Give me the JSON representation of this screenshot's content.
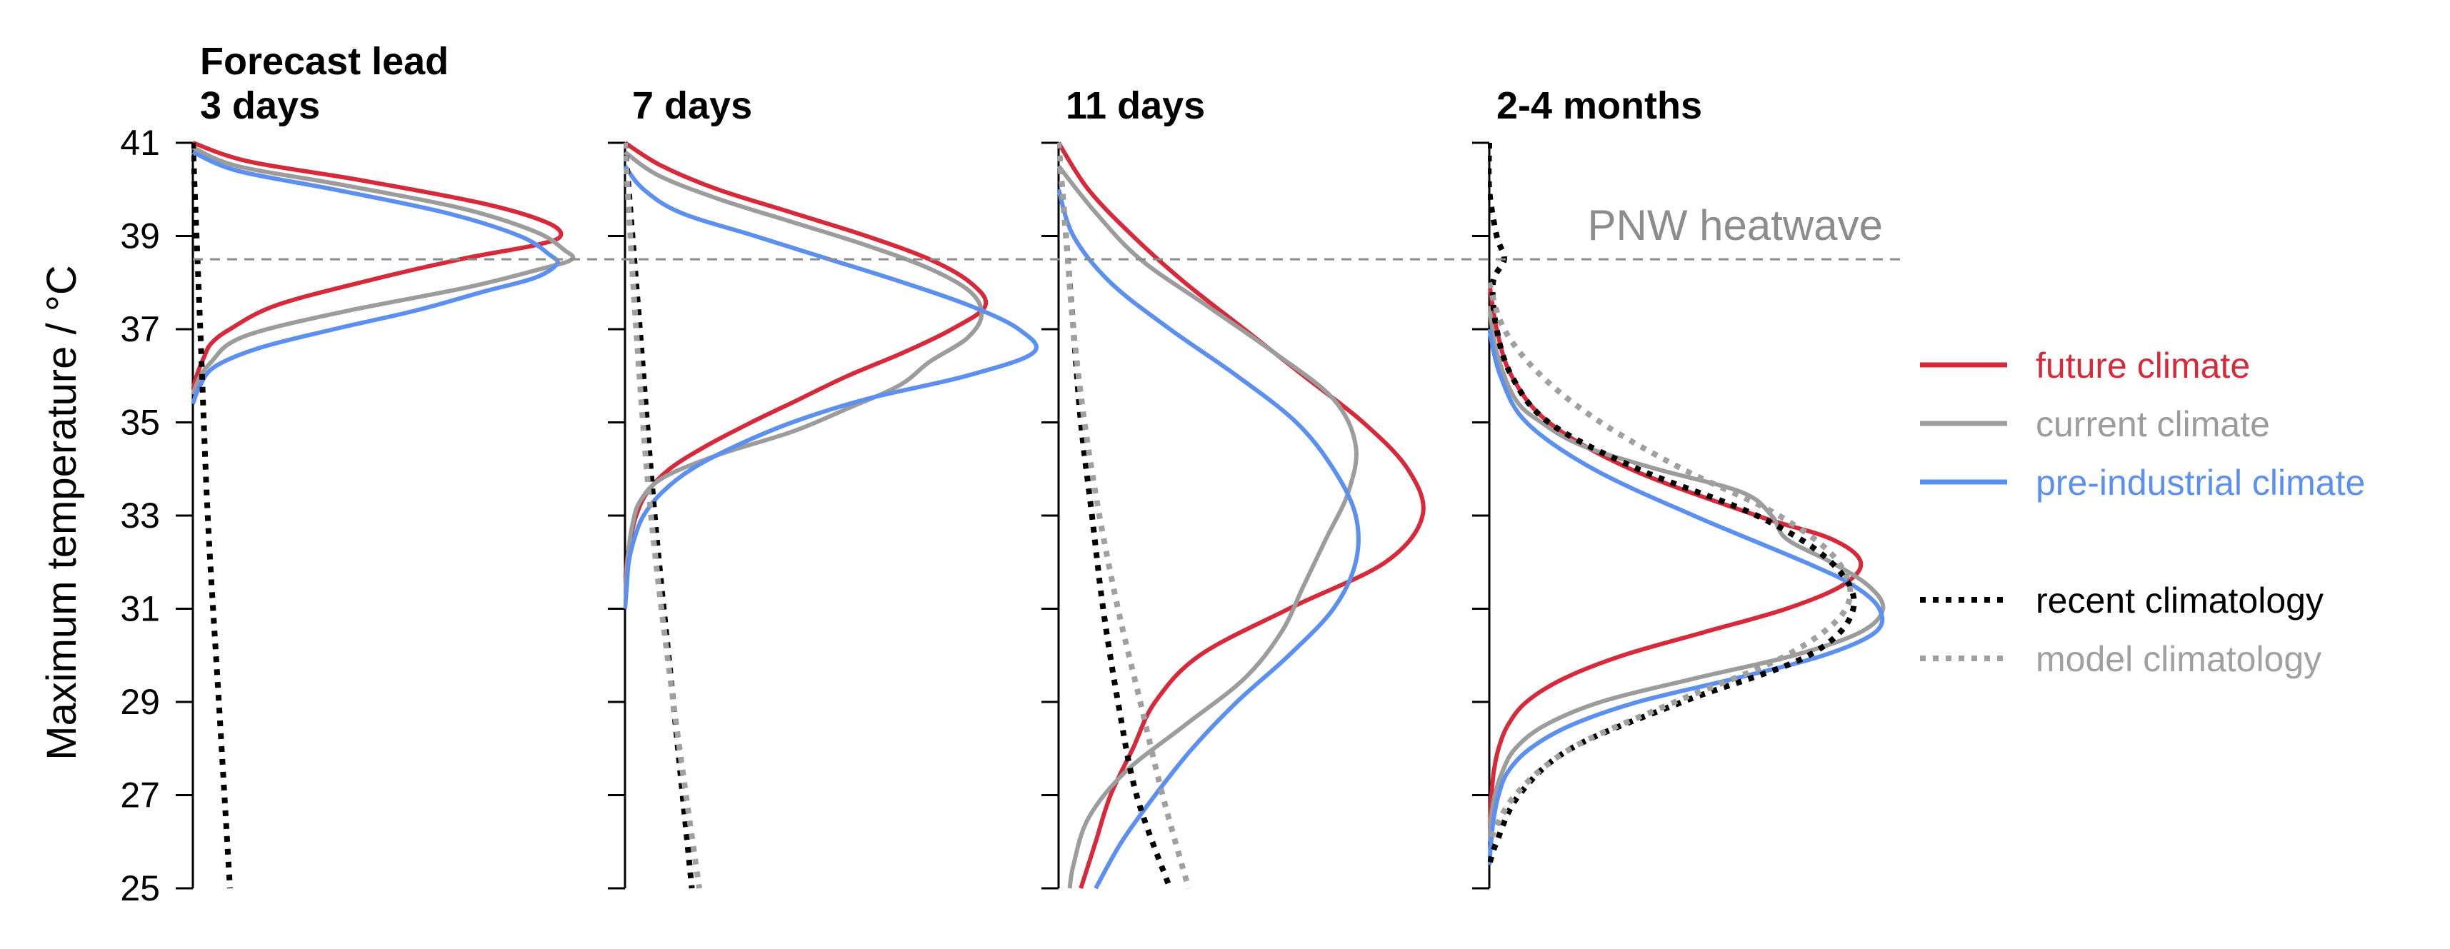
{
  "chart_data": {
    "type": "line",
    "orientation": "density-profile",
    "ylabel": "Maximum temperature / °C",
    "ylim": [
      25,
      41
    ],
    "yticks": [
      25,
      27,
      29,
      31,
      33,
      35,
      37,
      39,
      41
    ],
    "annotation": {
      "label": "PNW heatwave",
      "value": 38.5
    },
    "colors": {
      "future": "#d62a3a",
      "current": "#9c9c9c",
      "preindustrial": "#5b8ff0",
      "recent_clim": "#000000",
      "model_clim": "#a0a0a0"
    },
    "legend": {
      "placement": "right",
      "entries": [
        {
          "key": "future",
          "label": "future climate",
          "style": "solid"
        },
        {
          "key": "current",
          "label": "current climate",
          "style": "solid"
        },
        {
          "key": "preindustrial",
          "label": "pre-industrial climate",
          "style": "solid"
        },
        {
          "key": "recent_clim",
          "label": "recent climatology",
          "style": "dotted"
        },
        {
          "key": "model_clim",
          "label": "model climatology",
          "style": "dotted"
        }
      ]
    },
    "panels": [
      {
        "title_lines": [
          "Forecast lead",
          "3 days"
        ],
        "series": [
          {
            "key": "future",
            "y": [
              41.0,
              40.6,
              40.2,
              39.7,
              39.3,
              39.0,
              38.8,
              38.5,
              38.0,
              37.5,
              37.0,
              36.7,
              36.4,
              36.0,
              35.7
            ],
            "density": [
              0.0,
              0.15,
              0.45,
              0.78,
              0.95,
              0.99,
              0.92,
              0.72,
              0.45,
              0.22,
              0.1,
              0.05,
              0.03,
              0.01,
              0.0
            ]
          },
          {
            "key": "current",
            "y": [
              40.9,
              40.5,
              40.1,
              39.6,
              39.1,
              38.7,
              38.5,
              38.3,
              37.9,
              37.4,
              37.0,
              36.7,
              36.3,
              36.0,
              35.6
            ],
            "density": [
              0.0,
              0.12,
              0.4,
              0.72,
              0.92,
              1.0,
              1.02,
              0.94,
              0.74,
              0.42,
              0.2,
              0.1,
              0.05,
              0.02,
              0.0
            ]
          },
          {
            "key": "preindustrial",
            "y": [
              40.8,
              40.4,
              40.0,
              39.5,
              39.0,
              38.6,
              38.4,
              38.1,
              37.8,
              37.4,
              37.0,
              36.6,
              36.2,
              35.8,
              35.4
            ],
            "density": [
              0.0,
              0.12,
              0.38,
              0.68,
              0.88,
              0.96,
              0.98,
              0.92,
              0.78,
              0.6,
              0.38,
              0.18,
              0.06,
              0.02,
              0.0
            ]
          },
          {
            "key": "recent_clim",
            "y": [
              41.0,
              37.0,
              33.0,
              29.0,
              25.0
            ],
            "density": [
              0.0,
              0.02,
              0.04,
              0.07,
              0.1
            ]
          }
        ]
      },
      {
        "title_lines": [
          "7 days"
        ],
        "series": [
          {
            "key": "future",
            "y": [
              41.0,
              40.5,
              40.0,
              39.5,
              39.0,
              38.5,
              38.0,
              37.5,
              37.0,
              36.5,
              36.0,
              35.5,
              35.0,
              34.5,
              34.0,
              33.5,
              33.0,
              32.5,
              32.0,
              31.5
            ],
            "density": [
              0.0,
              0.1,
              0.25,
              0.45,
              0.65,
              0.82,
              0.93,
              0.97,
              0.88,
              0.75,
              0.6,
              0.47,
              0.34,
              0.22,
              0.12,
              0.06,
              0.03,
              0.015,
              0.005,
              0.0
            ]
          },
          {
            "key": "current",
            "y": [
              40.8,
              40.3,
              39.8,
              39.3,
              38.8,
              38.3,
              37.8,
              37.3,
              36.8,
              36.3,
              35.8,
              35.3,
              34.8,
              34.3,
              33.8,
              33.3,
              32.8,
              32.3,
              31.8,
              31.3
            ],
            "density": [
              0.0,
              0.09,
              0.25,
              0.45,
              0.65,
              0.82,
              0.93,
              0.96,
              0.92,
              0.82,
              0.74,
              0.6,
              0.45,
              0.25,
              0.1,
              0.04,
              0.02,
              0.01,
              0.005,
              0.0
            ]
          },
          {
            "key": "preindustrial",
            "y": [
              40.5,
              40.0,
              39.5,
              39.0,
              38.5,
              38.0,
              37.5,
              37.0,
              36.5,
              36.0,
              35.5,
              35.0,
              34.5,
              34.0,
              33.5,
              33.0,
              32.5,
              32.0,
              31.5,
              31.0
            ],
            "density": [
              0.0,
              0.05,
              0.15,
              0.35,
              0.55,
              0.75,
              0.93,
              1.06,
              1.1,
              0.92,
              0.65,
              0.45,
              0.3,
              0.18,
              0.1,
              0.05,
              0.025,
              0.01,
              0.005,
              0.0
            ]
          },
          {
            "key": "recent_clim",
            "y": [
              41.0,
              37.0,
              33.0,
              29.0,
              25.0
            ],
            "density": [
              0.0,
              0.04,
              0.08,
              0.13,
              0.18
            ]
          },
          {
            "key": "model_clim",
            "y": [
              41.0,
              37.0,
              33.0,
              29.0,
              25.0
            ],
            "density": [
              0.0,
              0.03,
              0.07,
              0.13,
              0.2
            ]
          }
        ]
      },
      {
        "title_lines": [
          "11 days"
        ],
        "series": [
          {
            "key": "future",
            "y": [
              41.0,
              40.0,
              39.0,
              38.0,
              37.0,
              36.0,
              35.0,
              34.0,
              33.0,
              32.0,
              31.0,
              30.0,
              29.0,
              28.0,
              27.0,
              26.0,
              25.0
            ],
            "density": [
              0.0,
              0.08,
              0.2,
              0.34,
              0.5,
              0.66,
              0.82,
              0.94,
              0.98,
              0.88,
              0.62,
              0.38,
              0.26,
              0.2,
              0.14,
              0.1,
              0.06
            ]
          },
          {
            "key": "current",
            "y": [
              40.5,
              39.5,
              38.5,
              37.5,
              36.5,
              35.5,
              34.5,
              33.5,
              32.5,
              31.5,
              30.5,
              29.5,
              28.5,
              27.5,
              26.5,
              25.5,
              25.0
            ],
            "density": [
              0.0,
              0.1,
              0.22,
              0.4,
              0.58,
              0.74,
              0.8,
              0.78,
              0.72,
              0.66,
              0.6,
              0.5,
              0.34,
              0.18,
              0.08,
              0.04,
              0.03
            ]
          },
          {
            "key": "preindustrial",
            "y": [
              40.0,
              39.0,
              38.0,
              37.0,
              36.0,
              35.0,
              34.0,
              33.0,
              32.0,
              31.0,
              30.0,
              29.0,
              28.0,
              27.0,
              26.0,
              25.0
            ],
            "density": [
              0.0,
              0.04,
              0.14,
              0.3,
              0.48,
              0.64,
              0.74,
              0.8,
              0.8,
              0.74,
              0.62,
              0.48,
              0.36,
              0.26,
              0.17,
              0.1
            ]
          },
          {
            "key": "recent_clim",
            "y": [
              41.0,
              39.0,
              37.0,
              35.0,
              33.0,
              31.0,
              29.0,
              27.0,
              25.0
            ],
            "density": [
              0.0,
              0.02,
              0.04,
              0.06,
              0.09,
              0.12,
              0.16,
              0.21,
              0.3
            ]
          },
          {
            "key": "model_clim",
            "y": [
              41.0,
              39.0,
              37.0,
              35.0,
              33.0,
              31.0,
              29.0,
              27.0,
              25.0
            ],
            "density": [
              0.0,
              0.02,
              0.04,
              0.07,
              0.11,
              0.16,
              0.22,
              0.28,
              0.35
            ]
          }
        ]
      },
      {
        "title_lines": [
          "2-4 months"
        ],
        "series": [
          {
            "key": "future",
            "y": [
              38.0,
              37.0,
              36.0,
              35.0,
              34.0,
              33.0,
              32.5,
              32.0,
              31.5,
              31.0,
              30.5,
              30.0,
              29.5,
              29.0,
              28.5,
              28.0,
              27.5,
              27.0,
              26.5,
              26.0
            ],
            "density": [
              0.0,
              0.02,
              0.06,
              0.16,
              0.38,
              0.72,
              0.92,
              1.0,
              0.95,
              0.8,
              0.58,
              0.36,
              0.2,
              0.1,
              0.05,
              0.025,
              0.012,
              0.006,
              0.003,
              0.0
            ]
          },
          {
            "key": "current",
            "y": [
              37.5,
              36.5,
              35.5,
              35.0,
              34.5,
              34.0,
              33.5,
              33.0,
              32.5,
              32.0,
              31.5,
              31.0,
              30.5,
              30.0,
              29.5,
              29.0,
              28.5,
              28.0,
              27.5,
              27.0,
              26.5,
              26.0
            ],
            "density": [
              0.0,
              0.02,
              0.07,
              0.14,
              0.25,
              0.45,
              0.68,
              0.76,
              0.8,
              0.92,
              1.02,
              1.06,
              1.0,
              0.82,
              0.55,
              0.3,
              0.15,
              0.07,
              0.035,
              0.015,
              0.005,
              0.0
            ]
          },
          {
            "key": "preindustrial",
            "y": [
              37.0,
              36.0,
              35.0,
              34.0,
              33.0,
              32.0,
              31.5,
              31.0,
              30.5,
              30.0,
              29.5,
              29.0,
              28.5,
              28.0,
              27.5,
              27.0,
              26.5,
              26.0,
              25.5
            ],
            "density": [
              0.0,
              0.03,
              0.1,
              0.28,
              0.55,
              0.85,
              0.98,
              1.05,
              1.04,
              0.9,
              0.66,
              0.4,
              0.22,
              0.11,
              0.05,
              0.025,
              0.012,
              0.005,
              0.0
            ]
          },
          {
            "key": "recent_clim",
            "y": [
              41.0,
              40.0,
              39.0,
              38.5,
              38.0,
              37.0,
              36.0,
              35.0,
              34.0,
              33.0,
              32.0,
              31.0,
              30.0,
              29.0,
              28.0,
              27.0,
              26.0,
              25.5
            ],
            "density": [
              0.0,
              0.0,
              0.02,
              0.04,
              0.01,
              0.02,
              0.06,
              0.16,
              0.4,
              0.72,
              0.92,
              0.98,
              0.86,
              0.52,
              0.22,
              0.08,
              0.02,
              0.0
            ]
          },
          {
            "key": "model_clim",
            "y": [
              38.0,
              37.0,
              36.0,
              35.0,
              34.0,
              33.0,
              32.0,
              31.0,
              30.0,
              29.0,
              28.0,
              27.0,
              26.0
            ],
            "density": [
              0.0,
              0.04,
              0.14,
              0.3,
              0.52,
              0.78,
              0.94,
              0.96,
              0.8,
              0.5,
              0.22,
              0.07,
              0.0
            ]
          }
        ]
      }
    ]
  }
}
